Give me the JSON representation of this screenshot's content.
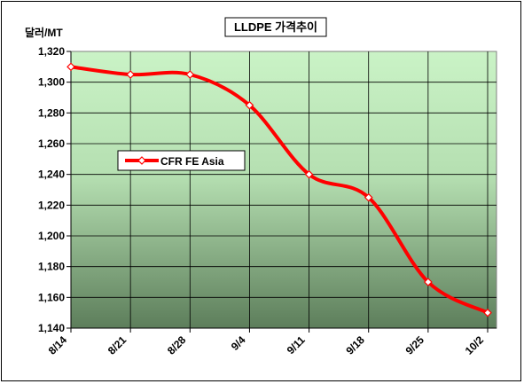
{
  "chart_data": {
    "type": "line",
    "title": "LLDPE 가격추이",
    "unit_label": "달러/MT",
    "xlabel": "",
    "ylabel": "달러/MT",
    "categories": [
      "8/14",
      "8/21",
      "8/28",
      "9/4",
      "9/11",
      "9/18",
      "9/25",
      "10/2"
    ],
    "series": [
      {
        "name": "CFR FE Asia",
        "values": [
          1310,
          1305,
          1305,
          1285,
          1240,
          1225,
          1170,
          1150
        ],
        "color": "#ff0000",
        "marker": "diamond",
        "marker_fill": "#ffffff",
        "smooth": true
      }
    ],
    "ylim": [
      1140,
      1320
    ],
    "yticks": [
      1140,
      1160,
      1180,
      1200,
      1220,
      1240,
      1260,
      1280,
      1300,
      1320
    ],
    "ytick_labels": [
      "1,140",
      "1,160",
      "1,180",
      "1,200",
      "1,220",
      "1,240",
      "1,260",
      "1,280",
      "1,300",
      "1,320"
    ],
    "grid": true,
    "legend_position": "center-left",
    "plot_background": "green vertical gradient",
    "colors": {
      "line": "#ff0000",
      "grid": "#000000",
      "bg_top": "#caf3c6",
      "bg_bottom": "#5d7e5b"
    }
  }
}
